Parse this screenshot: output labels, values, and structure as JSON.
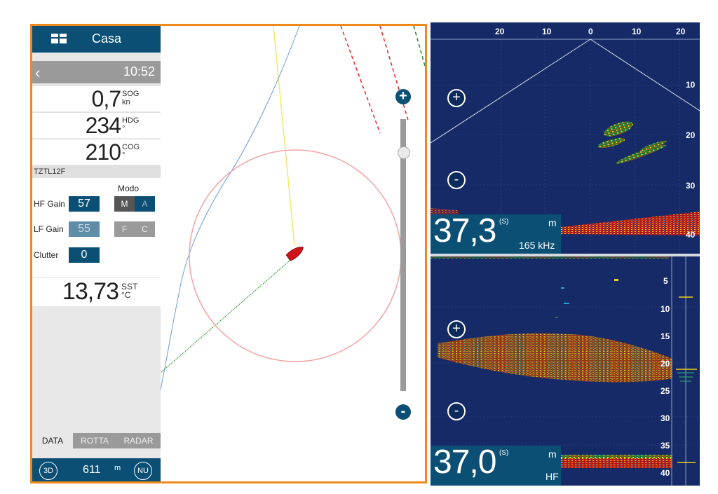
{
  "sidebar": {
    "title": "Casa",
    "time": "10:52",
    "readouts": [
      {
        "value": "0,7",
        "label": "SOG",
        "unit": "kn"
      },
      {
        "value": "234",
        "label": "HDG",
        "unit": "°"
      },
      {
        "value": "210",
        "label": "COG",
        "unit": "°"
      }
    ],
    "device": "TZTL12F",
    "modo_label": "Modo",
    "hf_gain": {
      "label": "HF Gain",
      "value": "57",
      "mode_a": "M",
      "mode_b": "A"
    },
    "lf_gain": {
      "label": "LF Gain",
      "value": "55",
      "mode_a": "F",
      "mode_b": "C"
    },
    "clutter": {
      "label": "Clutter",
      "value": "0"
    },
    "sst": {
      "value": "13,73",
      "label": "SST",
      "unit": "°C"
    },
    "tabs": [
      "DATA",
      "ROTTA",
      "RADAR"
    ],
    "active_tab": "DATA",
    "footer": {
      "mode_3d": "3D",
      "range": "611",
      "range_unit": "m",
      "orientation": "NU"
    }
  },
  "map": {
    "zoom_in": "+",
    "zoom_out": "-",
    "zoom_level": 0.12
  },
  "sonar": {
    "top_scale": [
      "20",
      "10",
      "0",
      "10",
      "20"
    ],
    "top_depth_scale": [
      "10",
      "20",
      "30",
      "40"
    ],
    "upper": {
      "depth": "37,3",
      "marker": "(S)",
      "unit": "m",
      "freq": "165 kHz",
      "zoom_in": "+",
      "zoom_out": "-"
    },
    "lower_depth_scale": [
      "5",
      "10",
      "15",
      "20",
      "25",
      "30",
      "35",
      "40"
    ],
    "lower": {
      "depth": "37,0",
      "marker": "(S)",
      "unit": "m",
      "freq": "HF",
      "zoom_in": "+",
      "zoom_out": "-"
    }
  },
  "colors": {
    "accent": "#0b4f75",
    "frame": "#ee8a1c",
    "sonar_bg": "#152a66",
    "boat": "#d0151b"
  }
}
